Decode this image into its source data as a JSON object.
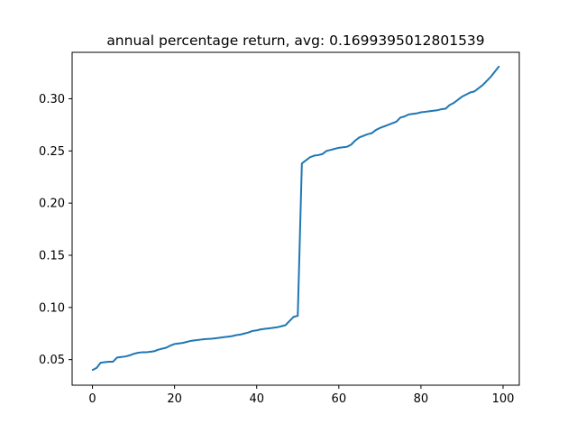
{
  "chart_data": {
    "type": "line",
    "title": "annual percentage return, avg: 0.1699395012801539",
    "xlabel": "",
    "ylabel": "",
    "xlim": [
      -4.95,
      103.95
    ],
    "ylim": [
      0.0255,
      0.3445
    ],
    "x_ticks": [
      0,
      20,
      40,
      60,
      80,
      100
    ],
    "x_tick_labels": [
      "0",
      "20",
      "40",
      "60",
      "80",
      "100"
    ],
    "y_ticks": [
      0.05,
      0.1,
      0.15,
      0.2,
      0.25,
      0.3
    ],
    "y_tick_labels": [
      "0.05",
      "0.10",
      "0.15",
      "0.20",
      "0.25",
      "0.30"
    ],
    "grid": false,
    "legend": "none",
    "series": [
      {
        "color": "#1f77b4",
        "x": [
          0,
          1,
          2,
          3,
          4,
          5,
          6,
          7,
          8,
          9,
          10,
          11,
          12,
          13,
          14,
          15,
          16,
          17,
          18,
          19,
          20,
          21,
          22,
          23,
          24,
          25,
          26,
          27,
          28,
          29,
          30,
          31,
          32,
          33,
          34,
          35,
          36,
          37,
          38,
          39,
          40,
          41,
          42,
          43,
          44,
          45,
          46,
          47,
          48,
          49,
          50,
          51,
          52,
          53,
          54,
          55,
          56,
          57,
          58,
          59,
          60,
          61,
          62,
          63,
          64,
          65,
          66,
          67,
          68,
          69,
          70,
          71,
          72,
          73,
          74,
          75,
          76,
          77,
          78,
          79,
          80,
          81,
          82,
          83,
          84,
          85,
          86,
          87,
          88,
          89,
          90,
          91,
          92,
          93,
          94,
          95,
          96,
          97,
          98,
          99
        ],
        "values": [
          0.04,
          0.042,
          0.047,
          0.0475,
          0.048,
          0.048,
          0.052,
          0.0525,
          0.053,
          0.054,
          0.0555,
          0.0565,
          0.057,
          0.057,
          0.0575,
          0.058,
          0.0595,
          0.0605,
          0.0615,
          0.0635,
          0.065,
          0.0655,
          0.066,
          0.067,
          0.068,
          0.0685,
          0.069,
          0.0695,
          0.0698,
          0.07,
          0.0705,
          0.071,
          0.0715,
          0.072,
          0.0725,
          0.0735,
          0.074,
          0.075,
          0.076,
          0.0775,
          0.078,
          0.079,
          0.0795,
          0.08,
          0.0805,
          0.081,
          0.082,
          0.083,
          0.087,
          0.091,
          0.092,
          0.238,
          0.241,
          0.244,
          0.2455,
          0.246,
          0.247,
          0.25,
          0.251,
          0.252,
          0.253,
          0.2535,
          0.254,
          0.256,
          0.26,
          0.263,
          0.2645,
          0.266,
          0.267,
          0.27,
          0.272,
          0.2735,
          0.275,
          0.2765,
          0.278,
          0.282,
          0.283,
          0.285,
          0.2855,
          0.286,
          0.287,
          0.2875,
          0.288,
          0.2885,
          0.289,
          0.29,
          0.2905,
          0.294,
          0.296,
          0.299,
          0.302,
          0.304,
          0.306,
          0.307,
          0.31,
          0.313,
          0.317,
          0.321,
          0.326,
          0.331
        ]
      }
    ]
  }
}
